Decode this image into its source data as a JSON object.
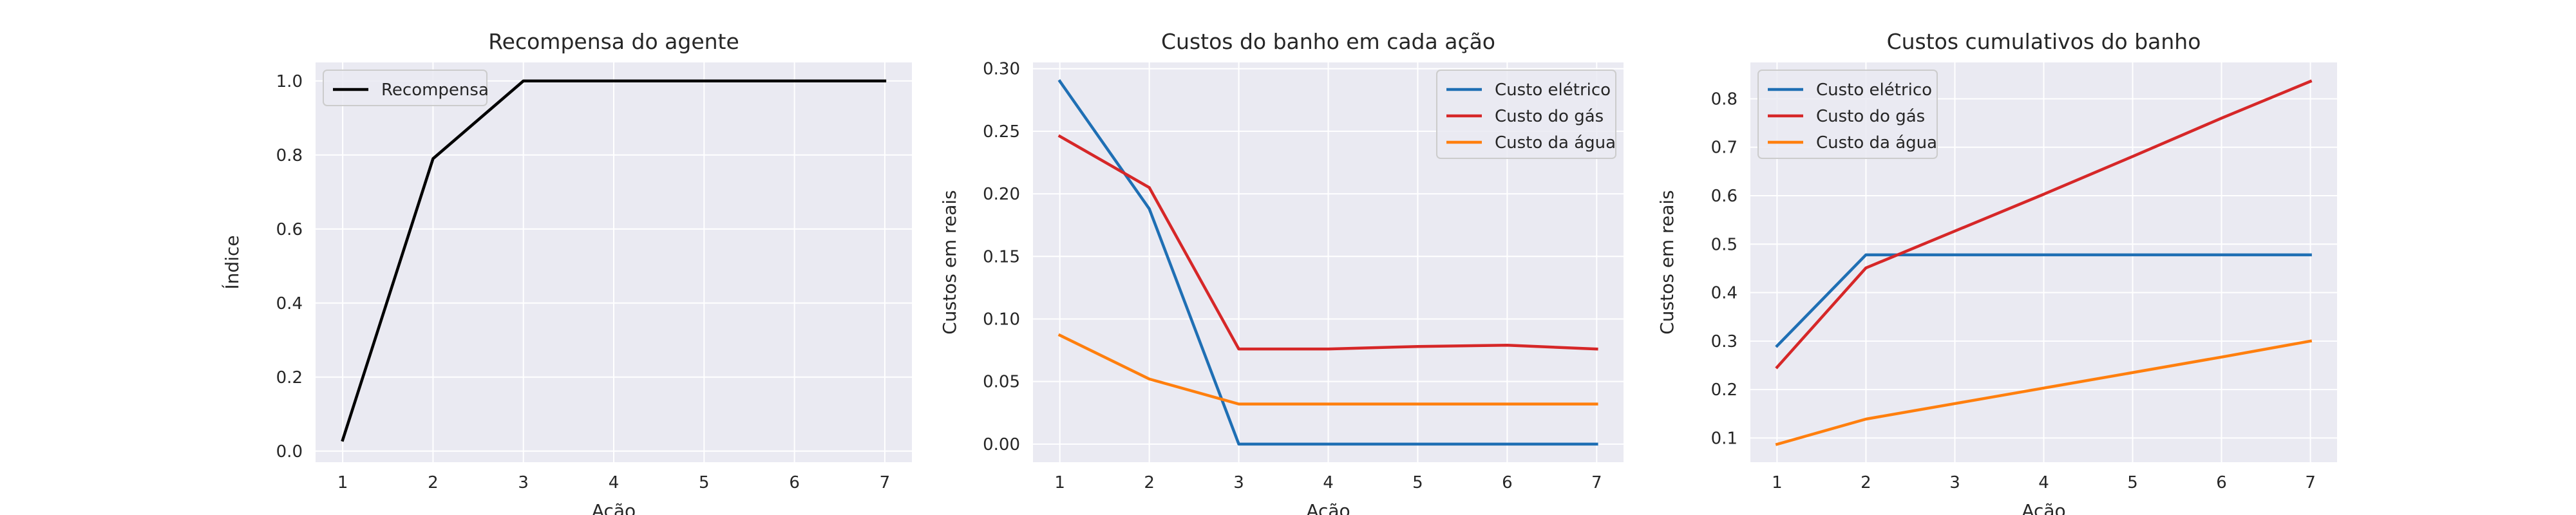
{
  "chart_data": [
    {
      "type": "line",
      "title": "Recompensa do agente",
      "xlabel": "Ação",
      "ylabel": "Índice",
      "x": [
        1,
        2,
        3,
        4,
        5,
        6,
        7
      ],
      "xticks": [
        "1",
        "2",
        "3",
        "4",
        "5",
        "6",
        "7"
      ],
      "ylim": [
        -0.03,
        1.05
      ],
      "yticks": [
        "0.0",
        "0.2",
        "0.4",
        "0.6",
        "0.8",
        "1.0"
      ],
      "grid": true,
      "legend_position": "top-left",
      "series": [
        {
          "name": "Recompensa",
          "color": "#000000",
          "values": [
            0.03,
            0.79,
            1.0,
            1.0,
            1.0,
            1.0,
            1.0
          ]
        }
      ]
    },
    {
      "type": "line",
      "title": "Custos do banho em cada ação",
      "xlabel": "Ação",
      "ylabel": "Custos em reais",
      "x": [
        1,
        2,
        3,
        4,
        5,
        6,
        7
      ],
      "xticks": [
        "1",
        "2",
        "3",
        "4",
        "5",
        "6",
        "7"
      ],
      "ylim": [
        -0.0145,
        0.305
      ],
      "yticks": [
        "0.00",
        "0.05",
        "0.10",
        "0.15",
        "0.20",
        "0.25",
        "0.30"
      ],
      "grid": true,
      "legend_position": "top-right",
      "series": [
        {
          "name": "Custo elétrico",
          "color": "#1f6fb4",
          "values": [
            0.29,
            0.188,
            0.0,
            0.0,
            0.0,
            0.0,
            0.0
          ]
        },
        {
          "name": "Custo do gás",
          "color": "#d62728",
          "values": [
            0.246,
            0.205,
            0.076,
            0.076,
            0.078,
            0.079,
            0.076
          ]
        },
        {
          "name": "Custo da água",
          "color": "#ff7f0e",
          "values": [
            0.087,
            0.052,
            0.032,
            0.032,
            0.032,
            0.032,
            0.032
          ]
        }
      ]
    },
    {
      "type": "line",
      "title": "Custos cumulativos do banho",
      "xlabel": "Ação",
      "ylabel": "Custos em reais",
      "x": [
        1,
        2,
        3,
        4,
        5,
        6,
        7
      ],
      "xticks": [
        "1",
        "2",
        "3",
        "4",
        "5",
        "6",
        "7"
      ],
      "ylim": [
        0.05,
        0.875
      ],
      "yticks": [
        "0.1",
        "0.2",
        "0.3",
        "0.4",
        "0.5",
        "0.6",
        "0.7",
        "0.8"
      ],
      "grid": true,
      "legend_position": "top-left",
      "series": [
        {
          "name": "Custo elétrico",
          "color": "#1f6fb4",
          "values": [
            0.29,
            0.478,
            0.478,
            0.478,
            0.478,
            0.478,
            0.478
          ]
        },
        {
          "name": "Custo do gás",
          "color": "#d62728",
          "values": [
            0.246,
            0.451,
            0.527,
            0.603,
            0.681,
            0.76,
            0.836
          ]
        },
        {
          "name": "Custo da água",
          "color": "#ff7f0e",
          "values": [
            0.087,
            0.139,
            0.171,
            0.203,
            0.235,
            0.267,
            0.3
          ]
        }
      ]
    }
  ]
}
